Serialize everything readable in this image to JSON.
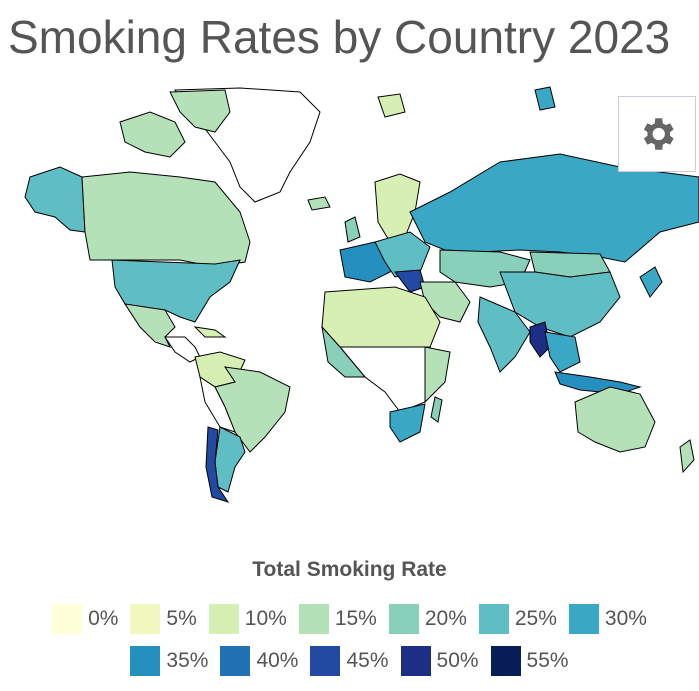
{
  "title": "Smoking Rates by Country 2023",
  "settings": {
    "icon": "gear-icon"
  },
  "legend": {
    "title": "Total Smoking Rate",
    "items": [
      {
        "label": "0%",
        "color": "#ffffd9"
      },
      {
        "label": "5%",
        "color": "#f1f9c0"
      },
      {
        "label": "10%",
        "color": "#d6efb3"
      },
      {
        "label": "15%",
        "color": "#b4e1b7"
      },
      {
        "label": "20%",
        "color": "#88d0ba"
      },
      {
        "label": "25%",
        "color": "#5fbec4"
      },
      {
        "label": "30%",
        "color": "#3aa8c5"
      },
      {
        "label": "35%",
        "color": "#258fc0"
      },
      {
        "label": "40%",
        "color": "#2271b4"
      },
      {
        "label": "45%",
        "color": "#234aa3"
      },
      {
        "label": "50%",
        "color": "#1c2e86"
      },
      {
        "label": "55%",
        "color": "#081d58"
      }
    ]
  },
  "map_regions": [
    {
      "name": "north-america",
      "rate_bin": "20%"
    },
    {
      "name": "usa",
      "rate_bin": "25%"
    },
    {
      "name": "alaska",
      "rate_bin": "25%"
    },
    {
      "name": "greenland",
      "rate_bin": "none"
    },
    {
      "name": "mexico",
      "rate_bin": "15%"
    },
    {
      "name": "central-america",
      "rate_bin": "10%"
    },
    {
      "name": "south-america",
      "rate_bin": "15%"
    },
    {
      "name": "argentina",
      "rate_bin": "25%"
    },
    {
      "name": "chile",
      "rate_bin": "45%"
    },
    {
      "name": "russia",
      "rate_bin": "30%"
    },
    {
      "name": "europe",
      "rate_bin": "25%"
    },
    {
      "name": "china",
      "rate_bin": "25%"
    },
    {
      "name": "india",
      "rate_bin": "25%"
    },
    {
      "name": "africa",
      "rate_bin": "10%"
    },
    {
      "name": "south-africa",
      "rate_bin": "30%"
    },
    {
      "name": "australia",
      "rate_bin": "15%"
    },
    {
      "name": "indonesia",
      "rate_bin": "35%"
    },
    {
      "name": "myanmar",
      "rate_bin": "50%"
    }
  ]
}
